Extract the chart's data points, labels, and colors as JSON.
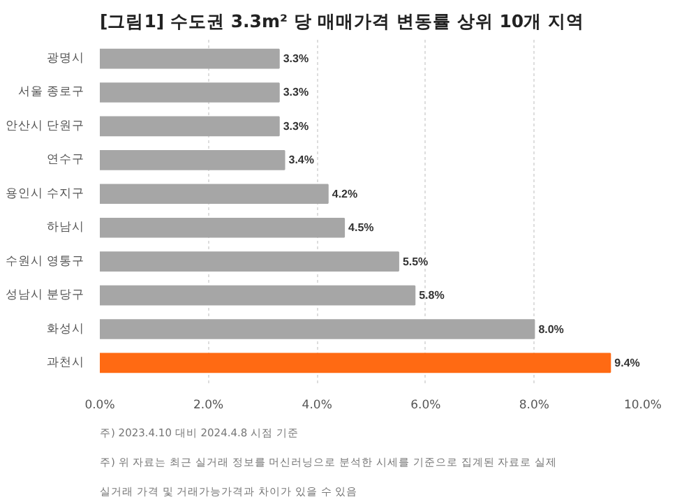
{
  "chart_data": {
    "type": "bar",
    "orientation": "horizontal",
    "title": "[그림1] 수도권 3.3m² 당 매매가격 변동률 상위 10개 지역",
    "categories": [
      "광명시",
      "서울 종로구",
      "안산시 단원구",
      "연수구",
      "용인시 수지구",
      "하남시",
      "수원시 영통구",
      "성남시 분당구",
      "화성시",
      "과천시"
    ],
    "values": [
      3.3,
      3.3,
      3.3,
      3.4,
      4.2,
      4.5,
      5.5,
      5.8,
      8.0,
      9.4
    ],
    "colors": [
      "#a6a6a6",
      "#a6a6a6",
      "#a6a6a6",
      "#a6a6a6",
      "#a6a6a6",
      "#a6a6a6",
      "#a6a6a6",
      "#a6a6a6",
      "#a6a6a6",
      "#ff6a13"
    ],
    "value_labels": [
      "3.3%",
      "3.3%",
      "3.3%",
      "3.4%",
      "4.2%",
      "4.5%",
      "5.5%",
      "5.8%",
      "8.0%",
      "9.4%"
    ],
    "xlim": [
      0,
      10
    ],
    "xticks": [
      {
        "value": 0,
        "label": "0.0%"
      },
      {
        "value": 2,
        "label": "2.0%"
      },
      {
        "value": 4,
        "label": "4.0%"
      },
      {
        "value": 6,
        "label": "6.0%"
      },
      {
        "value": 8,
        "label": "8.0%"
      },
      {
        "value": 10,
        "label": "10.0%"
      }
    ],
    "grid": "x",
    "annotations": [
      "주) 2023.4.10 대비 2024.4.8 시점 기준",
      "주) 위 자료는 최근 실거래 정보를 머신러닝으로 분석한 시세를 기준으로 집계된 자료로 실제",
      "실거래 가격 및 거래가능가격과 차이가 있을 수 있음"
    ]
  }
}
